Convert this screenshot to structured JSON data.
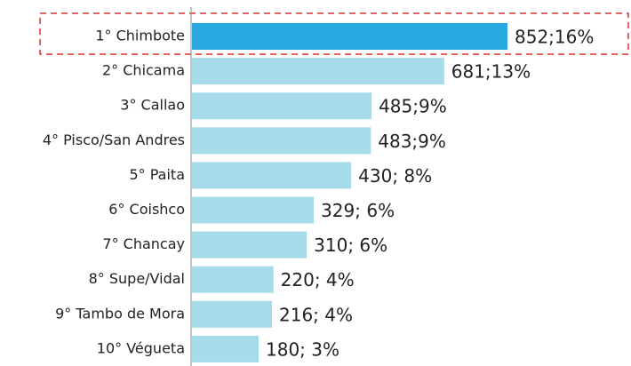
{
  "chart_data": {
    "type": "hbar",
    "categories": [
      "1° Chimbote",
      "2° Chicama",
      "3° Callao",
      "4° Pisco/San Andres",
      "5° Paita",
      "6° Coishco",
      "7° Chancay",
      "8° Supe/Vidal",
      "9° Tambo de Mora",
      "10° Végueta"
    ],
    "values": [
      852,
      681,
      485,
      483,
      430,
      329,
      310,
      220,
      216,
      180
    ],
    "value_labels": [
      "852;16%",
      "681;13%",
      "485;9%",
      "483;9%",
      "430; 8%",
      "329; 6%",
      "310; 6%",
      "220; 4%",
      "216; 4%",
      "180; 3%"
    ],
    "colors": [
      "#29a8e0",
      "#a6dce9",
      "#a6dce9",
      "#a6dce9",
      "#a6dce9",
      "#a6dce9",
      "#a6dce9",
      "#a6dce9",
      "#a6dce9",
      "#a6dce9"
    ]
  }
}
